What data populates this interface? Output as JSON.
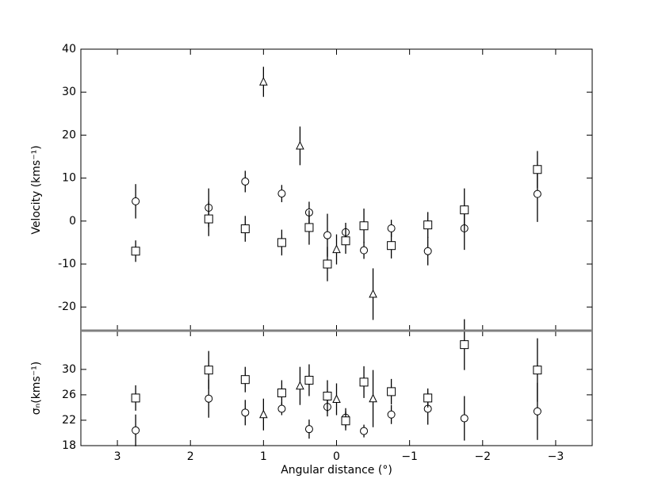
{
  "chart_data": [
    {
      "type": "scatter",
      "ylabel": "Velocity (kms⁻¹)",
      "xlim": [
        3.5,
        -3.5
      ],
      "xticks": [
        3,
        2,
        1,
        0,
        -1,
        -2,
        -3
      ],
      "ylim": [
        -25.5,
        40
      ],
      "yticks": [
        -20,
        -10,
        0,
        10,
        20,
        30,
        40
      ],
      "series": [
        {
          "marker": "circle",
          "color": "#000000",
          "x": [
            2.75,
            1.75,
            1.25,
            0.75,
            0.375,
            0.125,
            -0.125,
            -0.375,
            -0.75,
            -1.25,
            -1.75,
            -2.75
          ],
          "values": [
            4.6,
            3.1,
            9.2,
            6.4,
            2.0,
            -3.3,
            -2.6,
            -6.8,
            -1.7,
            -7.0,
            -1.7,
            6.3
          ],
          "errors": [
            4,
            4.5,
            2.5,
            2,
            2.5,
            5,
            2.2,
            2,
            2,
            3.3,
            5,
            6.5
          ]
        },
        {
          "marker": "square",
          "color": "#000000",
          "x": [
            2.75,
            1.75,
            1.25,
            0.75,
            0.375,
            0.125,
            -0.125,
            -0.375,
            -0.75,
            -1.25,
            -1.75,
            -2.75
          ],
          "values": [
            -7.0,
            0.5,
            -1.8,
            -5.0,
            -1.5,
            -10.0,
            -4.6,
            -1.1,
            -5.7,
            -0.9,
            2.6,
            12.0
          ],
          "errors": [
            2.5,
            4,
            3,
            3,
            4,
            4,
            3,
            4,
            3,
            3,
            5,
            4.3
          ]
        },
        {
          "marker": "triangle",
          "color": "#000000",
          "x": [
            1.0,
            0.5,
            0.0,
            -0.5
          ],
          "values": [
            32.4,
            17.5,
            -6.6,
            -17.0
          ],
          "errors": [
            3.5,
            4.5,
            3.5,
            6
          ]
        }
      ]
    },
    {
      "type": "scatter",
      "ylabel": "σₙ(kms⁻¹)",
      "xlabel": "Angular distance (°)",
      "xlim": [
        3.5,
        -3.5
      ],
      "xticks": [
        3,
        2,
        1,
        0,
        {
          "value": -1,
          "label": "−1"
        },
        {
          "value": -2,
          "label": "−2"
        },
        {
          "value": -3,
          "label": "−3"
        }
      ],
      "ylim": [
        18,
        36.1
      ],
      "yticks": [
        18,
        22,
        26,
        30
      ],
      "series": [
        {
          "marker": "circle",
          "color": "#000000",
          "x": [
            2.75,
            1.75,
            1.25,
            0.75,
            0.375,
            0.125,
            -0.125,
            -0.375,
            -0.75,
            -1.25,
            -1.75,
            -2.75
          ],
          "values": [
            20.4,
            25.4,
            23.2,
            23.8,
            20.6,
            24.1,
            22.4,
            20.3,
            22.9,
            23.8,
            22.3,
            23.4
          ],
          "errors": [
            2.5,
            3,
            2,
            1,
            1.5,
            1.5,
            1.5,
            1,
            1.5,
            2.5,
            3.5,
            4.5
          ]
        },
        {
          "marker": "square",
          "color": "#000000",
          "x": [
            2.75,
            1.75,
            1.25,
            0.75,
            0.375,
            0.125,
            -0.125,
            -0.375,
            -0.75,
            -1.25,
            -1.75,
            -2.75
          ],
          "values": [
            25.5,
            29.9,
            28.4,
            26.3,
            28.3,
            25.8,
            21.9,
            28.0,
            26.5,
            25.5,
            33.9,
            29.9
          ],
          "errors": [
            2,
            3,
            2,
            2,
            2.5,
            2.5,
            1.5,
            2.5,
            2,
            1.5,
            4,
            5
          ]
        },
        {
          "marker": "triangle",
          "color": "#000000",
          "x": [
            1.0,
            0.5,
            0.0,
            -0.5
          ],
          "values": [
            22.9,
            27.4,
            25.3,
            25.4
          ],
          "errors": [
            2.5,
            3,
            2.5,
            4.5
          ]
        }
      ]
    }
  ]
}
